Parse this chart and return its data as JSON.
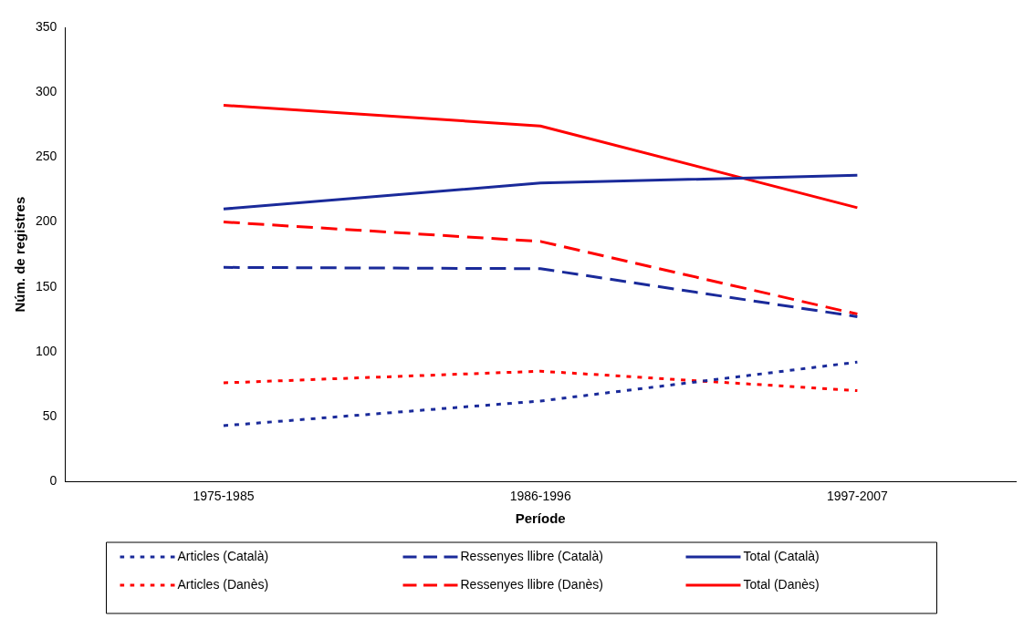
{
  "chart_data": {
    "type": "line",
    "xlabel": "Període",
    "ylabel": "Núm. de registres",
    "categories": [
      "1975-1985",
      "1986-1996",
      "1997-2007"
    ],
    "ylim": [
      0,
      350
    ],
    "yticks": [
      0,
      50,
      100,
      150,
      200,
      250,
      300,
      350
    ],
    "grid": false,
    "legend": "bottom",
    "marker": "none",
    "series": [
      {
        "name": "Articles (Català)",
        "color": "#1a2a9a",
        "line_style": "dotted",
        "values": [
          43,
          62,
          92
        ]
      },
      {
        "name": "Ressenyes llibre (Català)",
        "color": "#1a2a9a",
        "line_style": "dashed",
        "values": [
          165,
          164,
          127
        ]
      },
      {
        "name": "Total (Català)",
        "color": "#1a2a9a",
        "line_style": "solid",
        "values": [
          210,
          230,
          236
        ]
      },
      {
        "name": "Articles (Danès)",
        "color": "#ff0000",
        "line_style": "dotted",
        "values": [
          76,
          85,
          70
        ]
      },
      {
        "name": "Ressenyes llibre (Danès)",
        "color": "#ff0000",
        "line_style": "dashed",
        "values": [
          200,
          185,
          129
        ]
      },
      {
        "name": "Total (Danès)",
        "color": "#ff0000",
        "line_style": "solid",
        "values": [
          290,
          274,
          211
        ]
      }
    ]
  }
}
